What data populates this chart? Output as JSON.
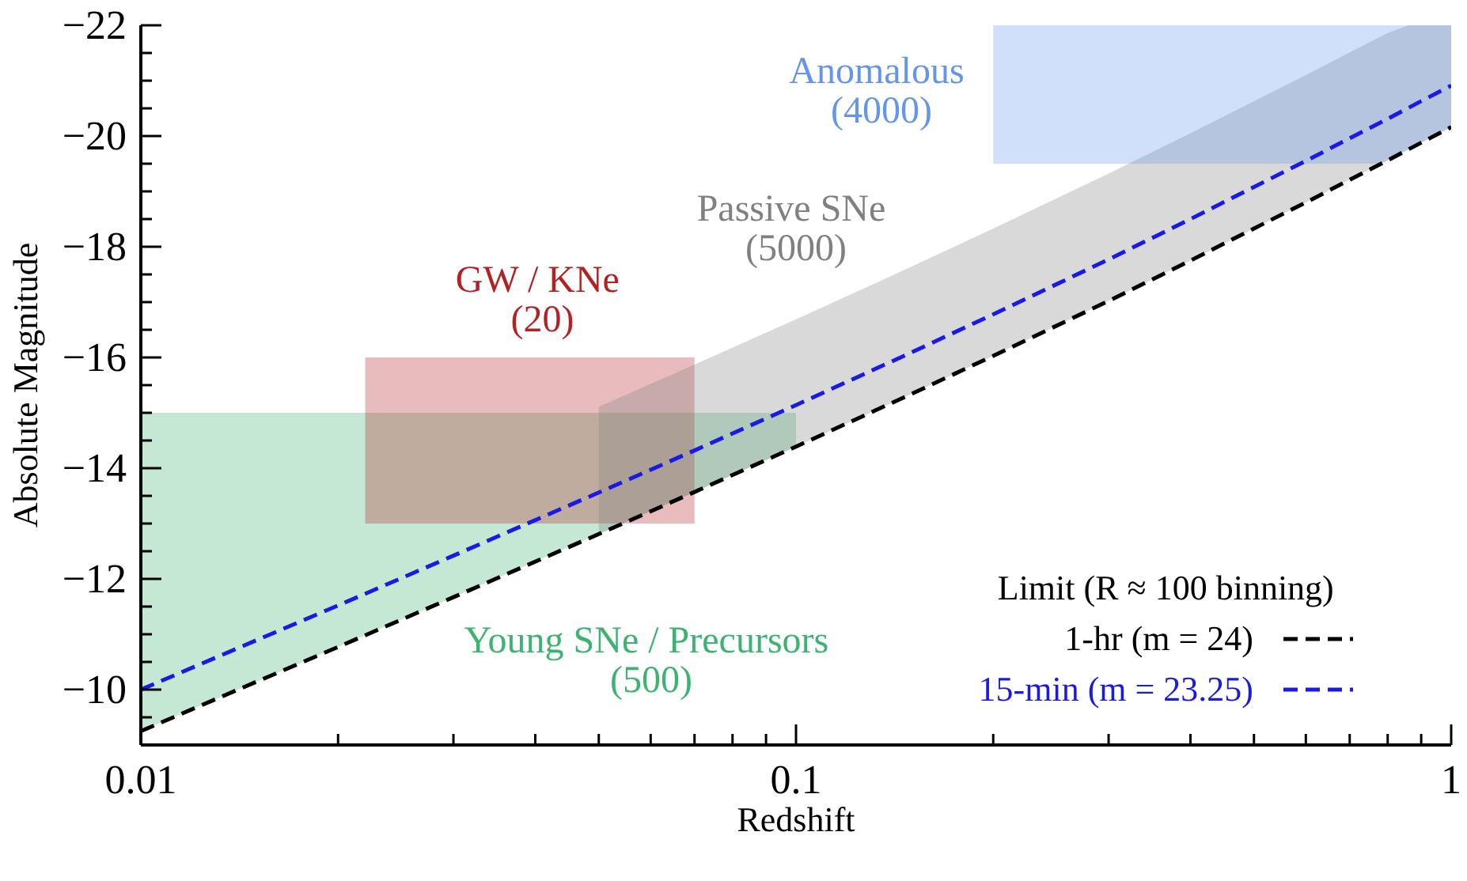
{
  "chart_data": {
    "type": "line",
    "xlabel": "Redshift",
    "ylabel": "Absolute Magnitude",
    "legend_title": "Limit (R ≈ 100 binning)",
    "legend": "bottom right",
    "log": "x",
    "xlim": [
      0.01,
      1
    ],
    "xticks": [
      0.01,
      {
        "value": 0.02,
        "label": null
      },
      {
        "value": 0.03,
        "label": null
      },
      {
        "value": 0.04,
        "label": null
      },
      {
        "value": 0.05,
        "label": null
      },
      {
        "value": 0.06,
        "label": null
      },
      {
        "value": 0.07,
        "label": null
      },
      {
        "value": 0.08,
        "label": null
      },
      {
        "value": 0.09,
        "label": null
      },
      0.1,
      {
        "value": 0.2,
        "label": null
      },
      {
        "value": 0.3,
        "label": null
      },
      {
        "value": 0.4,
        "label": null
      },
      {
        "value": 0.5,
        "label": null
      },
      {
        "value": 0.6,
        "label": null
      },
      {
        "value": 0.7,
        "label": null
      },
      {
        "value": 0.8,
        "label": null
      },
      {
        "value": 0.9,
        "label": null
      },
      1
    ],
    "ylim": [
      -9,
      -22
    ],
    "yticks": [
      {
        "value": -9.5,
        "label": null
      },
      -10,
      {
        "value": -10.5,
        "label": null
      },
      {
        "value": -11,
        "label": null
      },
      {
        "value": -11.5,
        "label": null
      },
      -12,
      {
        "value": -12.5,
        "label": null
      },
      {
        "value": -13,
        "label": null
      },
      {
        "value": -13.5,
        "label": null
      },
      -14,
      {
        "value": -14.5,
        "label": null
      },
      {
        "value": -15,
        "label": null
      },
      {
        "value": -15.5,
        "label": null
      },
      -16,
      {
        "value": -16.5,
        "label": null
      },
      {
        "value": -17,
        "label": null
      },
      {
        "value": -17.5,
        "label": null
      },
      -18,
      {
        "value": -18.5,
        "label": null
      },
      {
        "value": -19,
        "label": null
      },
      {
        "value": -19.5,
        "label": null
      },
      -20,
      {
        "value": -20.5,
        "label": null
      },
      {
        "value": -21,
        "label": null
      },
      {
        "value": -21.5,
        "label": null
      },
      -22
    ],
    "series": [
      {
        "type": "area",
        "name": "Young SNe / Precursors (500)",
        "color": "#3cb371",
        "x": [
          0.01,
          0.015,
          0.02,
          0.03,
          0.05,
          0.07,
          0.1
        ],
        "values": [
          null,
          null,
          null,
          null,
          null,
          null,
          null
        ],
        "upper": [
          -15,
          -15,
          -15,
          -15,
          -15,
          -15,
          -15
        ],
        "lower": [
          -9.25,
          -10.14,
          -10.77,
          -11.67,
          -12.81,
          -13.57,
          -14.39
        ]
      },
      {
        "type": "area",
        "name": "GW / KNe (20)",
        "color": "#b22222",
        "x": [
          0.022,
          0.07
        ],
        "values": [
          null,
          null
        ],
        "upper": [
          -16,
          -16
        ],
        "lower": [
          -13,
          -13
        ]
      },
      {
        "type": "area",
        "name": "Passive SNe (5000)",
        "color": "#808080",
        "x": [
          0.05,
          0.07,
          0.1,
          0.15,
          0.2,
          0.3,
          0.4,
          0.5,
          0.6,
          0.7,
          0.8,
          0.86,
          1
        ],
        "values": [
          null,
          null,
          null,
          null,
          null,
          null,
          null,
          null,
          null,
          null,
          null,
          null,
          null
        ],
        "upper": [
          -15.11,
          -15.87,
          -16.69,
          -17.64,
          -18.33,
          -19.32,
          -20.05,
          -20.63,
          -21.1,
          -21.51,
          -21.86,
          -22,
          -22
        ],
        "lower": [
          -12.81,
          -13.57,
          -14.39,
          -15.34,
          -16.03,
          -17.02,
          -17.75,
          -18.33,
          -18.8,
          -19.21,
          -19.56,
          -19.76,
          -20.16
        ]
      },
      {
        "type": "area",
        "name": "Anomalous (4000)",
        "color": "#6495ed",
        "x": [
          0.2,
          0.78,
          0.8,
          0.9,
          1
        ],
        "values": [
          null,
          null,
          null,
          null,
          null
        ],
        "upper": [
          -22,
          -22,
          -22,
          -22,
          -22
        ],
        "lower": [
          -19.5,
          -19.5,
          -19.56,
          -19.88,
          -20.16
        ]
      },
      {
        "name": "1-hr (m = 24)",
        "color": "#000000",
        "line_style": "dashed",
        "x": [
          0.01,
          0.015,
          0.02,
          0.03,
          0.05,
          0.07,
          0.1,
          0.15,
          0.2,
          0.3,
          0.4,
          0.5,
          0.6,
          0.7,
          0.8,
          0.9,
          1
        ],
        "values": [
          -9.25,
          -10.14,
          -10.77,
          -11.67,
          -12.81,
          -13.57,
          -14.39,
          -15.34,
          -16.03,
          -17.02,
          -17.75,
          -18.33,
          -18.8,
          -19.21,
          -19.56,
          -19.88,
          -20.16
        ]
      },
      {
        "name": "15-min (m = 23.25)",
        "color": "#1a1ae6",
        "line_style": "dashed",
        "x": [
          0.01,
          0.015,
          0.02,
          0.03,
          0.05,
          0.07,
          0.1,
          0.15,
          0.2,
          0.3,
          0.4,
          0.5,
          0.6,
          0.7,
          0.8,
          0.9,
          1
        ],
        "values": [
          -10,
          -10.89,
          -11.52,
          -12.42,
          -13.56,
          -14.32,
          -15.14,
          -16.09,
          -16.78,
          -17.77,
          -18.5,
          -19.08,
          -19.55,
          -19.96,
          -20.31,
          -20.63,
          -20.91
        ]
      }
    ]
  }
}
